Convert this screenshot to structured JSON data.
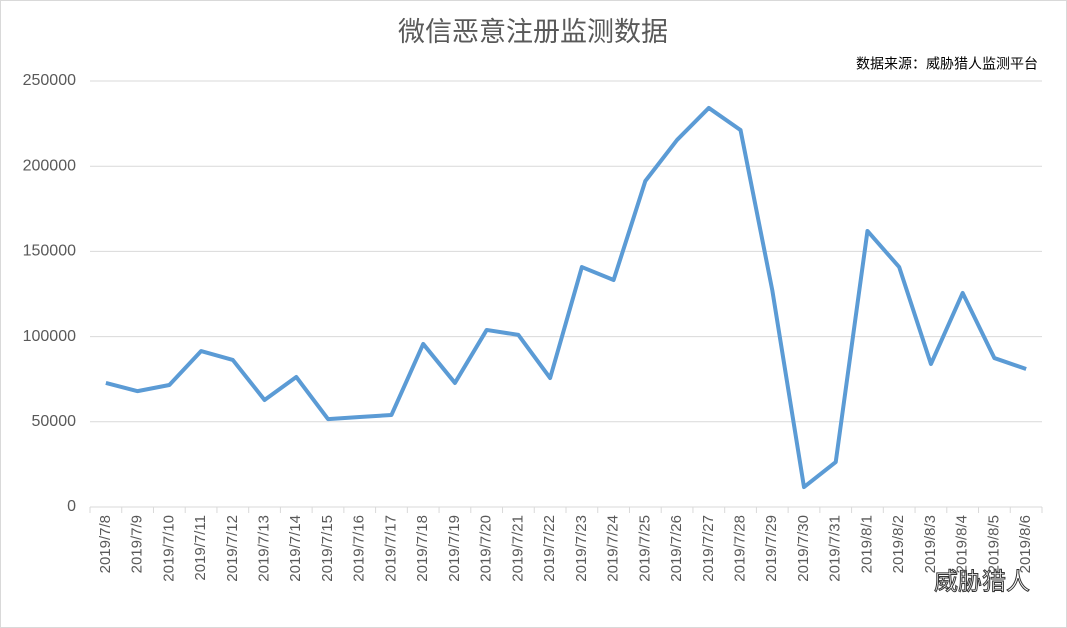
{
  "chart_data": {
    "type": "line",
    "title": "微信恶意注册监测数据",
    "source": "数据来源：威胁猎人监测平台",
    "watermark": "威胁猎人",
    "categories": [
      "2019/7/8",
      "2019/7/9",
      "2019/7/10",
      "2019/7/11",
      "2019/7/12",
      "2019/7/13",
      "2019/7/14",
      "2019/7/15",
      "2019/7/16",
      "2019/7/17",
      "2019/7/18",
      "2019/7/19",
      "2019/7/20",
      "2019/7/21",
      "2019/7/22",
      "2019/7/23",
      "2019/7/24",
      "2019/7/25",
      "2019/7/26",
      "2019/7/27",
      "2019/7/28",
      "2019/7/29",
      "2019/7/30",
      "2019/7/31",
      "2019/8/1",
      "2019/8/2",
      "2019/8/3",
      "2019/8/4",
      "2019/8/5",
      "2019/8/6"
    ],
    "values": [
      72800,
      68000,
      71600,
      91500,
      86300,
      62800,
      76300,
      51600,
      52800,
      54000,
      95700,
      72800,
      103900,
      101000,
      75700,
      140800,
      133200,
      191300,
      215400,
      234200,
      221200,
      127300,
      11700,
      26400,
      162000,
      140800,
      83900,
      125600,
      87400,
      81000
    ],
    "color": "#5b9bd5",
    "ylim": [
      0,
      250000
    ],
    "yticks": [
      0,
      50000,
      100000,
      150000,
      200000,
      250000
    ],
    "grid": true
  }
}
